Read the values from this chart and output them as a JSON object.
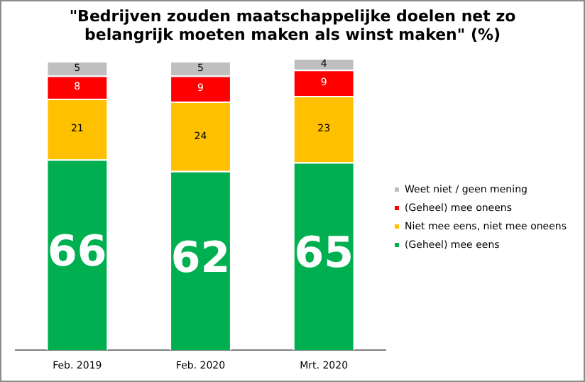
{
  "chart_data": {
    "type": "bar",
    "stacked": true,
    "title": "\"Bedrijven zouden maatschappelijke doelen net zo belangrijk moeten maken als winst maken\" (%)",
    "categories": [
      "Feb. 2019",
      "Feb. 2020",
      "Mrt. 2020"
    ],
    "series": [
      {
        "name": "(Geheel) mee eens",
        "color": "#00b050",
        "values": [
          66,
          62,
          65
        ]
      },
      {
        "name": "Niet mee eens, niet mee oneens",
        "color": "#ffc000",
        "values": [
          21,
          24,
          23
        ]
      },
      {
        "name": "(Geheel) mee oneens",
        "color": "#ff0000",
        "values": [
          8,
          9,
          9
        ]
      },
      {
        "name": "Weet niet / geen mening",
        "color": "#bfbfbf",
        "values": [
          5,
          5,
          4
        ]
      }
    ],
    "data_labels": true,
    "legend": "right",
    "grid": false,
    "tick_labels": "x"
  }
}
